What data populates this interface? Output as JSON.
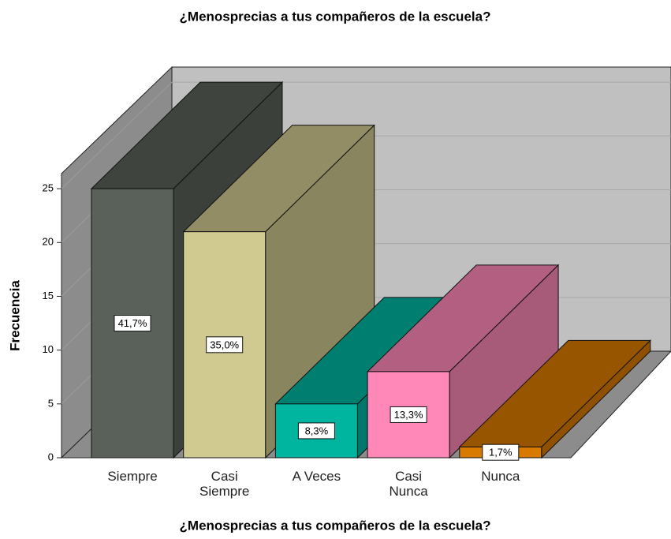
{
  "chart_data": {
    "type": "bar3d",
    "title": "¿Menosprecias a tus compañeros de la escuela?",
    "x_label": "¿Menosprecias a tus compañeros de la escuela?",
    "y_label": "Frecuencia",
    "categories": [
      "Siempre",
      "Casi Siempre",
      "A Veces",
      "Casi Nunca",
      "Nunca"
    ],
    "values": [
      25,
      21,
      5,
      8,
      1
    ],
    "colors": [
      "#5a615a",
      "#d0c990",
      "#00b5a0",
      "#ff88b8",
      "#d87a00"
    ],
    "percentages": {
      "values": [
        41.7,
        35.0,
        8.3,
        13.3,
        1.7
      ],
      "value_labels": [
        "41,7%",
        "35,0%",
        "8,3%",
        "13,3%",
        "1,7%"
      ]
    },
    "ylim": [
      0,
      26.4
    ],
    "yticks": [
      0,
      5,
      10,
      15,
      20,
      25
    ],
    "grid": true
  }
}
